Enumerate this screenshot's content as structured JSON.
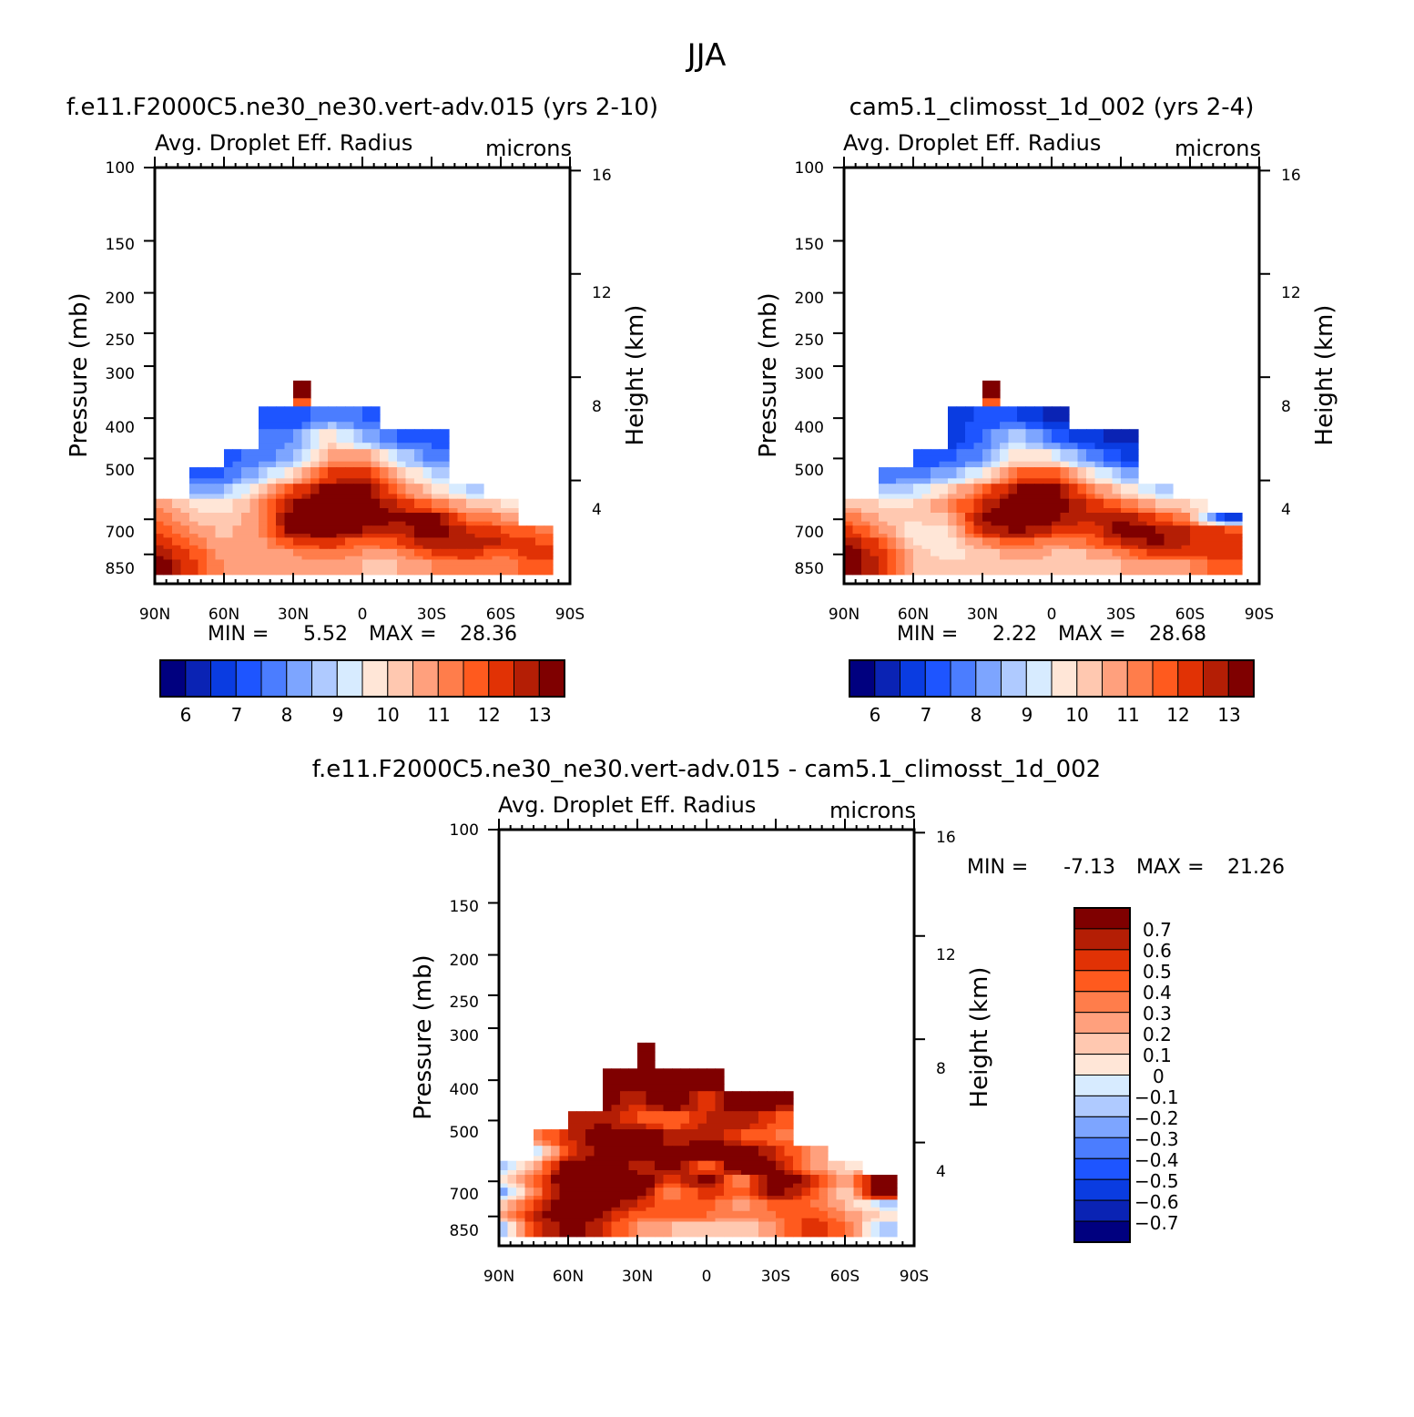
{
  "figure_title": "JJA",
  "colors": {
    "model_palette": [
      "#00007f",
      "#0a23b4",
      "#0a3ce1",
      "#1e55ff",
      "#4b7dff",
      "#7da5ff",
      "#afcaff",
      "#d7ebff",
      "#ffe6d7",
      "#ffc8b0",
      "#ffa07d",
      "#ff7d4b",
      "#ff5a1e",
      "#e13205",
      "#b41e05",
      "#7f0000"
    ],
    "diff_palette": [
      "#00007f",
      "#0a23b4",
      "#0a3ce1",
      "#1e55ff",
      "#4b7dff",
      "#7da5ff",
      "#afcaff",
      "#d7ebff",
      "#ffe6d7",
      "#ffc8b0",
      "#ffa07d",
      "#ff7d4b",
      "#ff5a1e",
      "#e13205",
      "#b41e05",
      "#7f0000"
    ]
  },
  "chart_data": [
    {
      "id": "panel1",
      "type": "heatmap",
      "title": "f.e11.F2000C5.ne30_ne30.vert-adv.015 (yrs 2-10)",
      "subtitle": "Avg. Droplet Eff. Radius",
      "units": "microns",
      "ylabel": "Pressure (mb)",
      "y2label": "Height (km)",
      "x_ticks": [
        "90N",
        "60N",
        "30N",
        "0",
        "30S",
        "60S",
        "90S"
      ],
      "y_ticks": [
        "100",
        "150",
        "200",
        "250",
        "300",
        "400",
        "500",
        "700",
        "850"
      ],
      "y2_ticks": [
        "16",
        "12",
        "8",
        "4"
      ],
      "min_label": "MIN =",
      "min_value": "5.52",
      "max_label": "MAX =",
      "max_value": "28.36",
      "colorbar_labels": [
        "6",
        "7",
        "8",
        "9",
        "10",
        "11",
        "12",
        "13"
      ],
      "levels": [
        5.5,
        6,
        6.5,
        7,
        7.5,
        8,
        8.5,
        9,
        9.5,
        10,
        10.5,
        11,
        11.5,
        12,
        12.5,
        13
      ],
      "field": {
        "lats": [
          90,
          75,
          60,
          45,
          30,
          15,
          0,
          -15,
          -30,
          -45,
          -60,
          -75,
          -90
        ],
        "pressures": [
          350,
          400,
          450,
          500,
          550,
          600,
          650,
          700,
          750,
          800,
          850,
          900
        ],
        "rows": [
          [
            null,
            null,
            null,
            null,
            13.5,
            null,
            null,
            null,
            null,
            null,
            null,
            null,
            null
          ],
          [
            null,
            null,
            null,
            7.0,
            6.5,
            7.5,
            7.0,
            null,
            null,
            null,
            null,
            null,
            null
          ],
          [
            null,
            null,
            null,
            7.0,
            7.5,
            9.5,
            8.0,
            7.0,
            6.8,
            null,
            null,
            null,
            null
          ],
          [
            null,
            null,
            6.8,
            7.2,
            8.0,
            10.0,
            10.5,
            8.5,
            7.2,
            null,
            null,
            null,
            null
          ],
          [
            null,
            6.8,
            7.0,
            8.0,
            9.5,
            11.5,
            12.0,
            10.0,
            8.5,
            null,
            null,
            null,
            null
          ],
          [
            null,
            7.5,
            8.0,
            9.5,
            11.5,
            12.8,
            13.0,
            11.0,
            9.5,
            8.5,
            null,
            null,
            null
          ],
          [
            10.5,
            9.5,
            9.0,
            10.5,
            12.5,
            13.5,
            13.2,
            12.0,
            11.0,
            10.0,
            9.5,
            null,
            null
          ],
          [
            11.0,
            10.0,
            9.5,
            10.5,
            13.0,
            13.5,
            13.0,
            12.5,
            12.8,
            11.0,
            10.5,
            null,
            null
          ],
          [
            11.5,
            10.5,
            9.8,
            10.5,
            12.8,
            13.0,
            12.5,
            12.0,
            13.2,
            12.0,
            11.5,
            11.0,
            null
          ],
          [
            12.0,
            11.0,
            10.0,
            10.3,
            11.5,
            12.0,
            11.0,
            11.5,
            12.5,
            12.5,
            12.0,
            11.5,
            null
          ],
          [
            12.5,
            11.5,
            10.2,
            10.0,
            10.5,
            11.0,
            10.5,
            10.5,
            11.5,
            12.0,
            11.0,
            12.0,
            null
          ],
          [
            13.0,
            11.8,
            10.5,
            10.0,
            10.2,
            10.2,
            10.0,
            10.0,
            10.5,
            11.0,
            10.5,
            11.5,
            null
          ]
        ]
      }
    },
    {
      "id": "panel2",
      "type": "heatmap",
      "title": "cam5.1_climosst_1d_002 (yrs 2-4)",
      "subtitle": "Avg. Droplet Eff. Radius",
      "units": "microns",
      "ylabel": "Pressure (mb)",
      "y2label": "Height (km)",
      "x_ticks": [
        "90N",
        "60N",
        "30N",
        "0",
        "30S",
        "60S",
        "90S"
      ],
      "y_ticks": [
        "100",
        "150",
        "200",
        "250",
        "300",
        "400",
        "500",
        "700",
        "850"
      ],
      "y2_ticks": [
        "16",
        "12",
        "8",
        "4"
      ],
      "min_label": "MIN =",
      "min_value": "2.22",
      "max_label": "MAX =",
      "max_value": "28.68",
      "colorbar_labels": [
        "6",
        "7",
        "8",
        "9",
        "10",
        "11",
        "12",
        "13"
      ],
      "levels": [
        5.5,
        6,
        6.5,
        7,
        7.5,
        8,
        8.5,
        9,
        9.5,
        10,
        10.5,
        11,
        11.5,
        12,
        12.5,
        13
      ],
      "field": {
        "lats": [
          90,
          75,
          60,
          45,
          30,
          15,
          0,
          -15,
          -30,
          -45,
          -60,
          -75,
          -90
        ],
        "pressures": [
          350,
          400,
          450,
          500,
          550,
          600,
          650,
          700,
          750,
          800,
          850,
          900
        ],
        "rows": [
          [
            null,
            null,
            null,
            null,
            13.5,
            null,
            null,
            null,
            null,
            null,
            null,
            null,
            null
          ],
          [
            null,
            null,
            null,
            6.0,
            6.8,
            6.5,
            5.8,
            null,
            null,
            null,
            null,
            null,
            null
          ],
          [
            null,
            null,
            null,
            6.2,
            7.0,
            8.5,
            7.0,
            6.2,
            5.8,
            null,
            null,
            null,
            null
          ],
          [
            null,
            null,
            6.5,
            6.8,
            7.5,
            9.5,
            9.0,
            7.5,
            6.5,
            null,
            null,
            null,
            null
          ],
          [
            null,
            7.0,
            7.2,
            7.8,
            9.0,
            11.0,
            11.5,
            9.5,
            8.0,
            null,
            null,
            null,
            null
          ],
          [
            null,
            8.0,
            8.5,
            9.5,
            11.0,
            12.5,
            12.8,
            11.0,
            9.5,
            8.5,
            null,
            null,
            null
          ],
          [
            10.0,
            9.5,
            9.5,
            10.5,
            12.0,
            13.2,
            13.0,
            12.0,
            11.0,
            10.0,
            9.5,
            null,
            null
          ],
          [
            11.0,
            10.0,
            9.5,
            10.0,
            12.5,
            13.5,
            12.8,
            12.0,
            12.5,
            11.5,
            10.5,
            6.5,
            null
          ],
          [
            12.0,
            10.5,
            9.2,
            9.5,
            12.0,
            12.8,
            12.0,
            11.5,
            12.8,
            12.5,
            12.0,
            11.5,
            null
          ],
          [
            12.5,
            11.5,
            9.5,
            9.3,
            10.5,
            11.5,
            10.5,
            11.0,
            12.0,
            12.8,
            12.0,
            11.8,
            null
          ],
          [
            13.0,
            11.8,
            9.8,
            9.2,
            9.8,
            10.2,
            10.0,
            10.0,
            10.8,
            11.8,
            11.5,
            12.0,
            null
          ],
          [
            13.0,
            12.0,
            10.0,
            9.5,
            9.8,
            10.0,
            9.8,
            9.8,
            10.0,
            10.5,
            10.5,
            11.5,
            null
          ]
        ]
      }
    },
    {
      "id": "panel3",
      "type": "heatmap",
      "title": "f.e11.F2000C5.ne30_ne30.vert-adv.015 - cam5.1_climosst_1d_002",
      "subtitle": "Avg. Droplet Eff. Radius",
      "units": "microns",
      "ylabel": "Pressure (mb)",
      "y2label": "Height (km)",
      "x_ticks": [
        "90N",
        "60N",
        "30N",
        "0",
        "30S",
        "60S",
        "90S"
      ],
      "y_ticks": [
        "100",
        "150",
        "200",
        "250",
        "300",
        "400",
        "500",
        "700",
        "850"
      ],
      "y2_ticks": [
        "16",
        "12",
        "8",
        "4"
      ],
      "min_label": "MIN =",
      "min_value": "-7.13",
      "max_label": "MAX =",
      "max_value": "21.26",
      "colorbar_labels": [
        "0.7",
        "0.6",
        "0.5",
        "0.4",
        "0.3",
        "0.2",
        "0.1",
        "0",
        "−0.1",
        "−0.2",
        "−0.3",
        "−0.4",
        "−0.5",
        "−0.6",
        "−0.7"
      ],
      "levels": [
        -0.7,
        -0.6,
        -0.5,
        -0.4,
        -0.3,
        -0.2,
        -0.1,
        0,
        0.1,
        0.2,
        0.3,
        0.4,
        0.5,
        0.6,
        0.7
      ],
      "field": {
        "lats": [
          90,
          75,
          60,
          45,
          30,
          15,
          0,
          -15,
          -30,
          -45,
          -60,
          -75,
          -90
        ],
        "pressures": [
          350,
          400,
          450,
          500,
          550,
          600,
          650,
          700,
          750,
          800,
          850,
          900
        ],
        "rows": [
          [
            null,
            null,
            null,
            null,
            0.9,
            null,
            null,
            null,
            null,
            null,
            null,
            null,
            null
          ],
          [
            null,
            null,
            null,
            0.9,
            0.9,
            0.9,
            0.9,
            null,
            null,
            null,
            null,
            null,
            null
          ],
          [
            null,
            null,
            null,
            0.8,
            0.6,
            0.9,
            0.5,
            0.9,
            0.8,
            null,
            null,
            null,
            null
          ],
          [
            null,
            null,
            0.6,
            0.7,
            0.5,
            0.4,
            0.6,
            0.7,
            0.5,
            null,
            null,
            null,
            null
          ],
          [
            null,
            0.3,
            0.6,
            0.8,
            0.9,
            0.6,
            0.7,
            0.5,
            0.4,
            null,
            null,
            null,
            null
          ],
          [
            null,
            -0.1,
            0.5,
            0.8,
            0.9,
            0.7,
            0.9,
            0.8,
            0.6,
            0.3,
            null,
            null,
            null
          ],
          [
            -0.2,
            0.2,
            0.8,
            0.9,
            0.6,
            0.8,
            0.4,
            0.9,
            0.7,
            0.3,
            0.1,
            null,
            null
          ],
          [
            0.0,
            0.4,
            0.9,
            0.7,
            0.9,
            0.5,
            0.8,
            0.3,
            0.9,
            0.6,
            0.2,
            0.8,
            null
          ],
          [
            -0.3,
            0.3,
            0.9,
            0.8,
            0.8,
            0.3,
            0.6,
            0.4,
            0.8,
            0.5,
            0.1,
            0.9,
            null
          ],
          [
            0.1,
            0.5,
            0.9,
            0.8,
            0.6,
            0.4,
            0.5,
            0.2,
            0.5,
            0.4,
            0.2,
            -0.1,
            null
          ],
          [
            0.2,
            0.6,
            0.9,
            0.7,
            0.4,
            0.5,
            0.4,
            0.3,
            0.4,
            0.5,
            0.3,
            0.1,
            null
          ],
          [
            -0.2,
            0.5,
            0.8,
            0.6,
            0.3,
            0.2,
            0.2,
            0.1,
            0.3,
            0.6,
            0.4,
            -0.1,
            null
          ]
        ]
      }
    }
  ]
}
